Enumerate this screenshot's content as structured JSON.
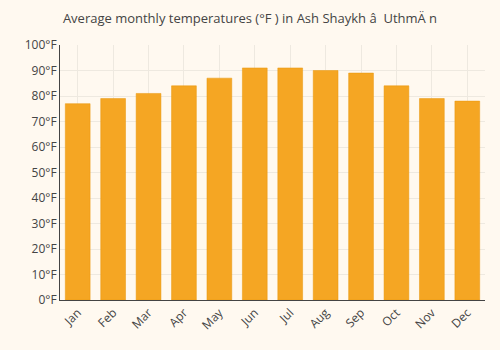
{
  "chart_data": {
    "type": "bar",
    "title": "Average monthly temperatures (°F ) in Ash Shaykh â  UthmÄ n",
    "categories": [
      "Jan",
      "Feb",
      "Mar",
      "Apr",
      "May",
      "Jun",
      "Jul",
      "Aug",
      "Sep",
      "Oct",
      "Nov",
      "Dec"
    ],
    "values": [
      77,
      79,
      81,
      84,
      87,
      91,
      91,
      90,
      89,
      84,
      79,
      78
    ],
    "color": "#F5A623",
    "ylim": [
      0,
      100
    ],
    "yticks": [
      {
        "value": 0,
        "label": "0°F"
      },
      {
        "value": 10,
        "label": "10°F"
      },
      {
        "value": 20,
        "label": "20°F"
      },
      {
        "value": 30,
        "label": "30°F"
      },
      {
        "value": 40,
        "label": "40°F"
      },
      {
        "value": 50,
        "label": "50°F"
      },
      {
        "value": 60,
        "label": "60°F"
      },
      {
        "value": 70,
        "label": "70°F"
      },
      {
        "value": 80,
        "label": "80°F"
      },
      {
        "value": 90,
        "label": "90°F"
      },
      {
        "value": 100,
        "label": "100°F"
      }
    ],
    "grid": true
  }
}
